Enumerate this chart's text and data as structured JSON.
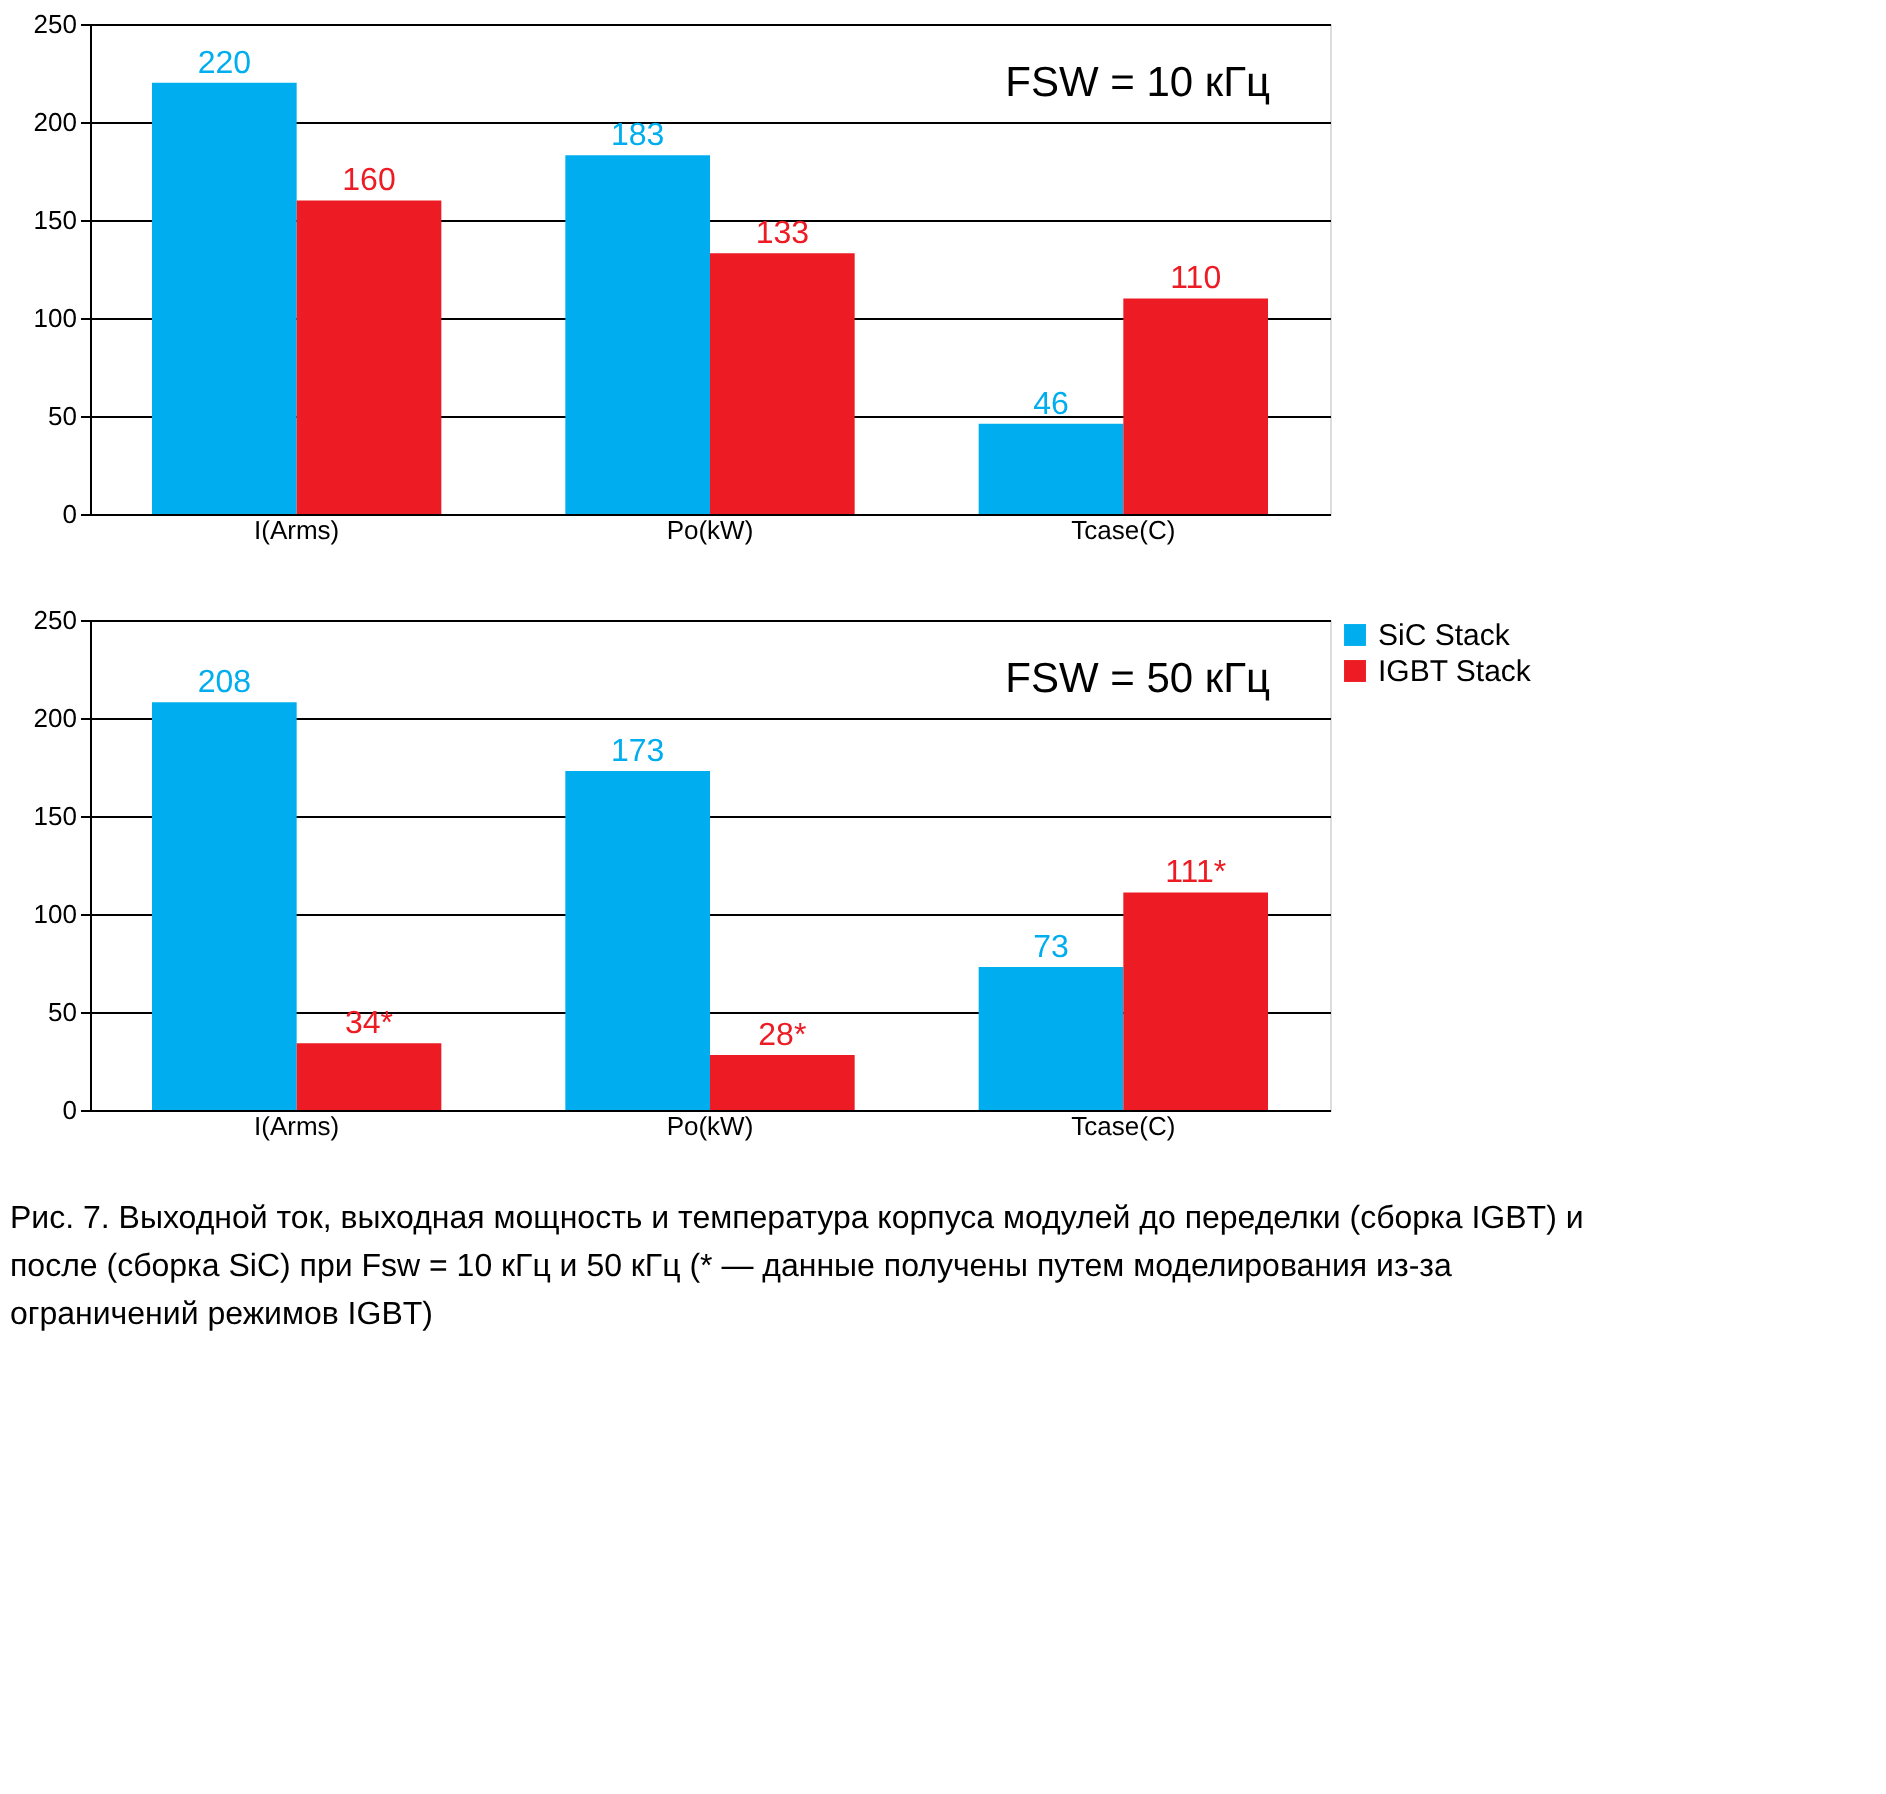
{
  "chart_data": [
    {
      "type": "bar",
      "categories": [
        "I(Arms)",
        "Po(kW)",
        "Tcase(C)"
      ],
      "ylim": [
        0,
        250
      ],
      "yticks": [
        0,
        50,
        100,
        150,
        200,
        250
      ],
      "grid": "y",
      "legend": false,
      "data_labels": true,
      "series": [
        {
          "color": "#00aeef",
          "values": [
            220,
            183,
            46
          ]
        },
        {
          "color": "#ed1c24",
          "values": [
            160,
            133,
            110
          ]
        }
      ],
      "annotations": [
        "FSW = 10 кГц"
      ]
    },
    {
      "type": "bar",
      "categories": [
        "I(Arms)",
        "Po(kW)",
        "Tcase(C)"
      ],
      "ylim": [
        0,
        250
      ],
      "yticks": [
        0,
        50,
        100,
        150,
        200,
        250
      ],
      "grid": "y",
      "legend": "right",
      "series": [
        {
          "name": "SiC Stack",
          "color": "#00aeef",
          "values": [
            208,
            173,
            73
          ],
          "value_labels": [
            "208",
            "173",
            "73"
          ]
        },
        {
          "name": "IGBT Stack",
          "color": "#ed1c24",
          "values": [
            34,
            28,
            111
          ],
          "value_labels": [
            "34*",
            "28*",
            "111*"
          ]
        }
      ],
      "annotations": [
        "FSW = 50 кГц",
        "Рис. 7. Выходной ток, выходная мощность и температура корпуса модулей до переделки (сборка IGBT) и после (сборка SiC) при Fsw = 10 кГц и 50 кГц (* — данные получены путем моделирования из-за ограничений режимов IGBT)"
      ]
    }
  ]
}
